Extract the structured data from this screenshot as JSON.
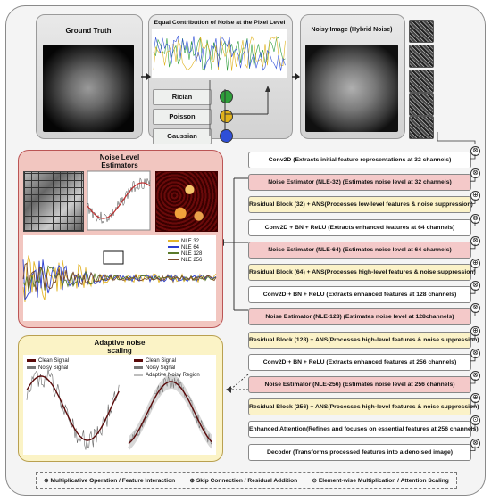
{
  "panels": {
    "ground_truth": "Ground Truth",
    "equal_contribution": "Equal Contribution of Noise at the Pixel Level",
    "noisy_image": "Noisy Image (Hybrid Noise)",
    "noise_estimators": "Noise Level\nEstimators",
    "adaptive": "Adaptive noise\nscaling"
  },
  "noise_types": [
    "Rician",
    "Poisson",
    "Gaussian"
  ],
  "noise_colors": [
    "#2e9e3a",
    "#e0b21c",
    "#2f4fd8"
  ],
  "nle_legend": [
    {
      "label": "NLE 32",
      "color": "#e3b52a"
    },
    {
      "label": "NLE 64",
      "color": "#2c3fd0"
    },
    {
      "label": "NLE 128",
      "color": "#5a7a2a"
    },
    {
      "label": "NLE 256",
      "color": "#7a4a2a"
    }
  ],
  "adaptive_legend_left": [
    "Clean Signal",
    "Noisy Signal"
  ],
  "adaptive_legend_right": [
    "Clean Signal",
    "Noisy Signal",
    "Adaptive Noisy Region"
  ],
  "steps": [
    {
      "text": "Conv2D (Extracts initial feature representations at 32 channels)",
      "kind": "plain"
    },
    {
      "text": "Noise Estimator (NLE-32) (Estimates noise level at 32 channels)",
      "kind": "est"
    },
    {
      "text": "Residual Block (32) + ANS(Processes low-level features & noise suppression)",
      "kind": "res"
    },
    {
      "text": "Conv2D + BN + ReLU (Extracts enhanced features at 64 channels)",
      "kind": "plain"
    },
    {
      "text": "Noise Estimator (NLE-64) (Estimates noise level at 64 channels)",
      "kind": "est"
    },
    {
      "text": "Residual Block (64) + ANS(Processes high-level features & noise suppression)",
      "kind": "res"
    },
    {
      "text": "Conv2D + BN + ReLU (Extracts enhanced features at 128 channels)",
      "kind": "plain"
    },
    {
      "text": "Noise Estimator (NLE-128) (Estimates noise level at 128channels)",
      "kind": "est"
    },
    {
      "text": "Residual Block (128) + ANS(Processes high-level features & noise suppression)",
      "kind": "res"
    },
    {
      "text": "Conv2D + BN + ReLU (Extracts enhanced features at 256 channels)",
      "kind": "plain"
    },
    {
      "text": "Noise Estimator (NLE-256) (Estimates noise level at 256 channels)",
      "kind": "est"
    },
    {
      "text": "Residual Block (256) + ANS(Processes high-level features & noise suppression)",
      "kind": "res"
    },
    {
      "text": "Enhanced Attention(Refines and focuses on essential features at 256 channels)",
      "kind": "plain"
    },
    {
      "text": "Decoder (Transforms processed features into a denoised image)",
      "kind": "plain"
    }
  ],
  "ops": [
    "⊗",
    "⊗",
    "⊕",
    "⊗",
    "⊗",
    "⊕",
    "⊗",
    "⊗",
    "⊕",
    "⊗",
    "⊗",
    "⊕",
    "⊙",
    "⊗"
  ],
  "legend": {
    "mult": "⊗ Multiplicative Operation / Feature Interaction",
    "skip": "⊕ Skip Connection / Residual Addition",
    "elem": "⊙ Element-wise Multiplication / Attention Scaling"
  }
}
